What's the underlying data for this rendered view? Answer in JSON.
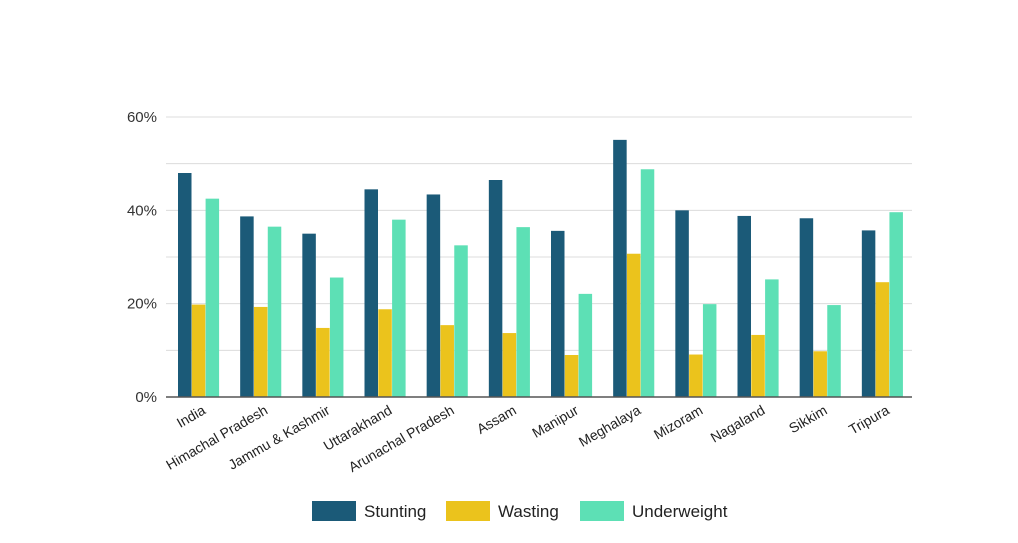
{
  "chart_data": {
    "type": "bar",
    "title": "",
    "xlabel": "",
    "ylabel": "",
    "ylim": [
      0,
      60
    ],
    "yticks": [
      0,
      20,
      40,
      60
    ],
    "ytick_labels": [
      "0%",
      "20%",
      "40%",
      "60%"
    ],
    "grid": true,
    "legend_position": "bottom",
    "categories": [
      "India",
      "Himachal Pradesh",
      "Jammu & Kashmir",
      "Uttarakhand",
      "Arunachal Pradesh",
      "Assam",
      "Manipur",
      "Meghalaya",
      "Mizoram",
      "Nagaland",
      "Sikkim",
      "Tripura"
    ],
    "series": [
      {
        "name": "Stunting",
        "color": "#1b5a78",
        "values": [
          48,
          38.7,
          35,
          44.5,
          43.4,
          46.5,
          35.6,
          55.1,
          40,
          38.8,
          38.3,
          35.7
        ]
      },
      {
        "name": "Wasting",
        "color": "#ebc31c",
        "values": [
          19.8,
          19.3,
          14.8,
          18.8,
          15.4,
          13.7,
          9,
          30.7,
          9.1,
          13.3,
          9.8,
          24.6
        ]
      },
      {
        "name": "Underweight",
        "color": "#5de0b5",
        "values": [
          42.5,
          36.5,
          25.6,
          38,
          32.5,
          36.4,
          22.1,
          48.8,
          19.9,
          25.2,
          19.7,
          39.6
        ]
      }
    ]
  }
}
